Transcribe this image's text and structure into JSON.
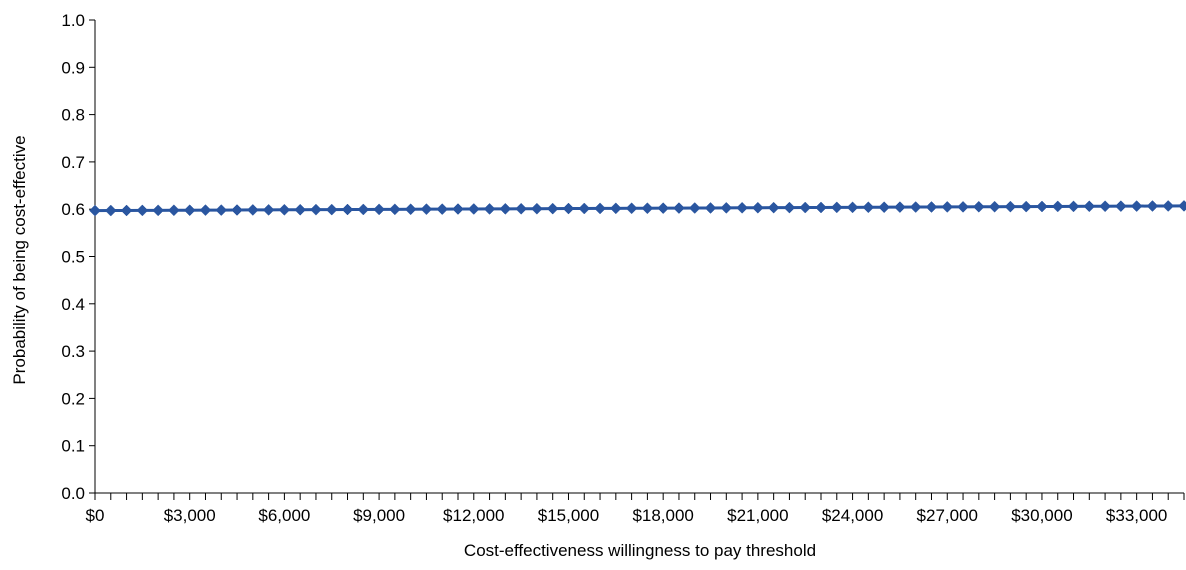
{
  "chart_data": {
    "type": "line",
    "title": "",
    "xlabel": "Cost-effectiveness willingness to pay threshold",
    "ylabel": "Probability of being cost-effective",
    "xlim": [
      0,
      34500
    ],
    "ylim": [
      0,
      1.0
    ],
    "x_ticks": [
      0,
      3000,
      6000,
      9000,
      12000,
      15000,
      18000,
      21000,
      24000,
      27000,
      30000,
      33000
    ],
    "x_tick_labels": [
      "$0",
      "$3,000",
      "$6,000",
      "$9,000",
      "$12,000",
      "$15,000",
      "$18,000",
      "$21,000",
      "$24,000",
      "$27,000",
      "$30,000",
      "$33,000"
    ],
    "x_minor_step": 500,
    "y_ticks": [
      0,
      0.1,
      0.2,
      0.3,
      0.4,
      0.5,
      0.6,
      0.7,
      0.8,
      0.9,
      1.0
    ],
    "y_tick_labels": [
      "0.0",
      "0.1",
      "0.2",
      "0.3",
      "0.4",
      "0.5",
      "0.6",
      "0.7",
      "0.8",
      "0.9",
      "1.0"
    ],
    "grid": false,
    "legend": "none",
    "series": [
      {
        "marker": "diamond",
        "color": "#2a56a0",
        "x_start": 0,
        "x_step": 500,
        "x_end": 34500,
        "y_start": 0.597,
        "y_end": 0.607
      }
    ]
  }
}
